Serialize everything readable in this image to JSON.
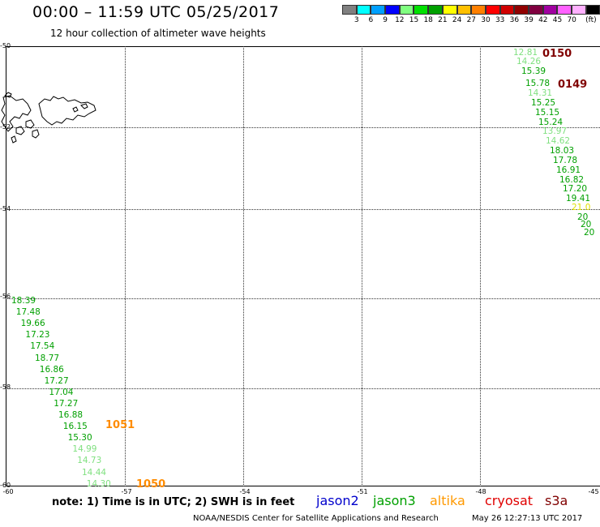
{
  "header": {
    "title": "00:00 – 11:59 UTC 05/25/2017",
    "subtitle": "12 hour collection of altimeter wave heights"
  },
  "colorbar": {
    "colors": [
      "#808080",
      "#00ffff",
      "#00a0ff",
      "#0000ff",
      "#80ff80",
      "#00e000",
      "#00a000",
      "#ffff00",
      "#ffc000",
      "#ff8000",
      "#ff0000",
      "#d00000",
      "#900000",
      "#800040",
      "#a000a0",
      "#ff60ff",
      "#ffb0ff",
      "#000000"
    ],
    "labels": [
      "3",
      "6",
      "9",
      "12",
      "15",
      "18",
      "21",
      "24",
      "27",
      "30",
      "33",
      "36",
      "39",
      "42",
      "45",
      "70",
      "(ft)"
    ]
  },
  "axes": {
    "lat_labels": [
      "-50",
      "-52",
      "-54",
      "-56",
      "-58",
      "-60"
    ],
    "lon_labels": [
      "-60",
      "-57",
      "-54",
      "-51",
      "-48",
      "-45"
    ]
  },
  "tracks": {
    "east": [
      {
        "v": "12.81",
        "c": "#80e080"
      },
      {
        "v": "14.26",
        "c": "#80e080"
      },
      {
        "v": "15.39",
        "c": "#00a000"
      },
      {
        "v": "15.78",
        "c": "#00a000"
      },
      {
        "v": "14.31",
        "c": "#80e080"
      },
      {
        "v": "15.25",
        "c": "#00a000"
      },
      {
        "v": "15.15",
        "c": "#00a000"
      },
      {
        "v": "15.24",
        "c": "#00a000"
      },
      {
        "v": "13.97",
        "c": "#80e080"
      },
      {
        "v": "14.62",
        "c": "#80e080"
      },
      {
        "v": "18.03",
        "c": "#00a000"
      },
      {
        "v": "17.78",
        "c": "#00a000"
      },
      {
        "v": "16.91",
        "c": "#00a000"
      },
      {
        "v": "16.82",
        "c": "#00a000"
      },
      {
        "v": "17.20",
        "c": "#00a000"
      },
      {
        "v": "19.41",
        "c": "#00a000"
      },
      {
        "v": "21.0",
        "c": "#e0e000"
      },
      {
        "v": "20",
        "c": "#00a000"
      },
      {
        "v": "20",
        "c": "#00a000"
      },
      {
        "v": "20",
        "c": "#00a000"
      }
    ],
    "west": [
      {
        "v": "18.39",
        "c": "#00a000"
      },
      {
        "v": "17.48",
        "c": "#00a000"
      },
      {
        "v": "19.66",
        "c": "#00a000"
      },
      {
        "v": "17.23",
        "c": "#00a000"
      },
      {
        "v": "17.54",
        "c": "#00a000"
      },
      {
        "v": "18.77",
        "c": "#00a000"
      },
      {
        "v": "16.86",
        "c": "#00a000"
      },
      {
        "v": "17.27",
        "c": "#00a000"
      },
      {
        "v": "17.04",
        "c": "#00a000"
      },
      {
        "v": "17.27",
        "c": "#00a000"
      },
      {
        "v": "16.88",
        "c": "#00a000"
      },
      {
        "v": "16.15",
        "c": "#00a000"
      },
      {
        "v": "15.30",
        "c": "#00a000"
      },
      {
        "v": "14.99",
        "c": "#80e080"
      },
      {
        "v": "14.73",
        "c": "#80e080"
      },
      {
        "v": "14.44",
        "c": "#80e080"
      },
      {
        "v": "14.30",
        "c": "#80e080"
      }
    ]
  },
  "time_labels": [
    {
      "text": "0150",
      "color": "#800000"
    },
    {
      "text": "0149",
      "color": "#800000"
    },
    {
      "text": "1051",
      "color": "#ff8c00"
    },
    {
      "text": "1050",
      "color": "#ff8c00"
    }
  ],
  "note": "note:  1) Time is in UTC;  2) SWH is in feet",
  "legend": [
    {
      "name": "jason2",
      "color": "#0000cc"
    },
    {
      "name": "jason3",
      "color": "#00a000"
    },
    {
      "name": "altika",
      "color": "#ff9900"
    },
    {
      "name": "cryosat",
      "color": "#e00000"
    },
    {
      "name": "s3a",
      "color": "#800000"
    }
  ],
  "footer": {
    "source": "NOAA/NESDIS Center for Satellite Applications and Research",
    "timestamp": "May 26 12:27:13 UTC 2017"
  }
}
